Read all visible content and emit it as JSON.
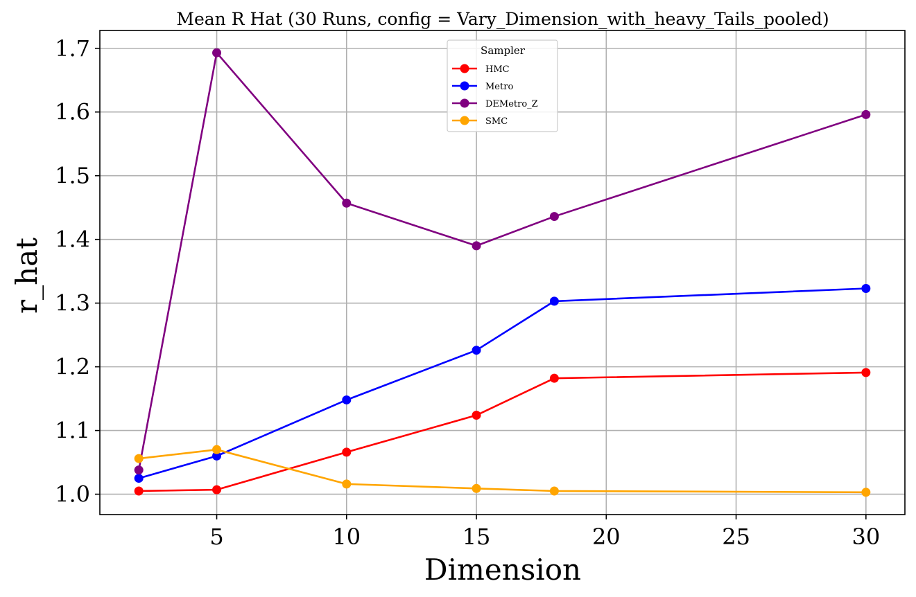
{
  "chart_data": {
    "type": "line",
    "title": "Mean R Hat (30 Runs, config = Vary_Dimension_with_heavy_Tails_pooled)",
    "xlabel": "Dimension",
    "ylabel": "r_hat",
    "x": [
      2,
      5,
      10,
      15,
      18,
      30
    ],
    "xlim": [
      0.5,
      31.5
    ],
    "ylim": [
      0.968,
      1.728
    ],
    "xticks": [
      5,
      10,
      15,
      20,
      25,
      30
    ],
    "yticks": [
      1.0,
      1.1,
      1.2,
      1.3,
      1.4,
      1.5,
      1.6,
      1.7
    ],
    "xtick_labels": [
      "5",
      "10",
      "15",
      "20",
      "25",
      "30"
    ],
    "ytick_labels": [
      "1.0",
      "1.1",
      "1.2",
      "1.3",
      "1.4",
      "1.5",
      "1.6",
      "1.7"
    ],
    "grid": true,
    "legend": {
      "title": "Sampler",
      "placement": "upper-center"
    },
    "series": [
      {
        "name": "HMC",
        "color": "#ff0000",
        "values": [
          1.005,
          1.007,
          1.066,
          1.124,
          1.182,
          1.191
        ]
      },
      {
        "name": "Metro",
        "color": "#0000ff",
        "values": [
          1.025,
          1.06,
          1.148,
          1.226,
          1.303,
          1.323
        ]
      },
      {
        "name": "DEMetro_Z",
        "color": "#800080",
        "values": [
          1.038,
          1.693,
          1.457,
          1.39,
          1.436,
          1.596
        ]
      },
      {
        "name": "SMC",
        "color": "#ffa500",
        "values": [
          1.056,
          1.07,
          1.016,
          1.009,
          1.005,
          1.003
        ]
      }
    ]
  }
}
